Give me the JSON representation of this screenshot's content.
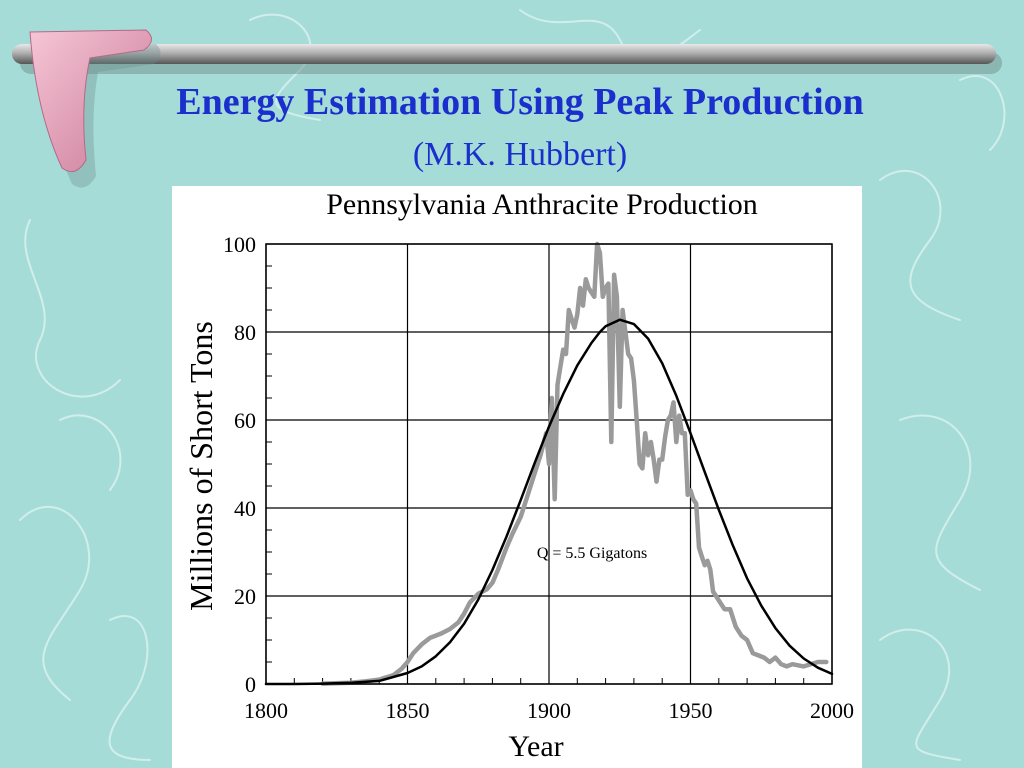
{
  "slide": {
    "title": "Energy Estimation Using Peak Production",
    "subtitle": "(M.K. Hubbert)"
  },
  "colors": {
    "background": "#a6dcd8",
    "title_text": "#1a2fcc",
    "swirl_lines": "#d6f0ec",
    "rod": "#8a8a8a",
    "boomerang": "#e79ab4",
    "actual_series": "#9a9a9a",
    "fit_series": "#000000"
  },
  "chart_data": {
    "type": "line",
    "title": "Pennsylvania Anthracite Production",
    "xlabel": "Year",
    "ylabel": "Millions of Short Tons",
    "xlim": [
      1800,
      2000
    ],
    "ylim": [
      0,
      100
    ],
    "xticks": [
      1800,
      1850,
      1900,
      1950,
      2000
    ],
    "yticks": [
      0,
      20,
      40,
      60,
      80,
      100
    ],
    "grid": true,
    "annotation": "Q = 5.5 Gigatons",
    "series": [
      {
        "style": "gray-thick",
        "x": [
          1820,
          1830,
          1835,
          1840,
          1845,
          1848,
          1850,
          1852,
          1855,
          1858,
          1860,
          1862,
          1865,
          1868,
          1870,
          1872,
          1875,
          1878,
          1880,
          1882,
          1885,
          1887,
          1890,
          1892,
          1895,
          1897,
          1899,
          1900,
          1901,
          1902,
          1903,
          1904,
          1905,
          1906,
          1907,
          1908,
          1909,
          1910,
          1911,
          1912,
          1913,
          1914,
          1915,
          1916,
          1917,
          1918,
          1919,
          1920,
          1921,
          1922,
          1923,
          1924,
          1925,
          1926,
          1927,
          1928,
          1929,
          1930,
          1931,
          1932,
          1933,
          1934,
          1935,
          1936,
          1937,
          1938,
          1939,
          1940,
          1941,
          1942,
          1943,
          1944,
          1945,
          1946,
          1947,
          1948,
          1949,
          1950,
          1951,
          1952,
          1953,
          1954,
          1955,
          1956,
          1957,
          1958,
          1959,
          1960,
          1962,
          1964,
          1966,
          1968,
          1970,
          1972,
          1974,
          1976,
          1978,
          1980,
          1982,
          1984,
          1986,
          1990,
          1995,
          1998
        ],
        "y": [
          0.1,
          0.3,
          0.6,
          1.0,
          2.0,
          3.5,
          5.0,
          7.0,
          9.0,
          10.5,
          11.0,
          11.5,
          12.5,
          14.0,
          16.0,
          18.5,
          20.5,
          21.5,
          23.0,
          26.0,
          31.0,
          34.0,
          38.0,
          42.0,
          48.0,
          52.0,
          57.0,
          50.0,
          65.0,
          42.0,
          68.0,
          72.0,
          76.0,
          75.0,
          85.0,
          83.0,
          81.0,
          84.0,
          90.0,
          86.0,
          92.0,
          90.0,
          89.0,
          88.0,
          100.0,
          98.0,
          88.0,
          90.0,
          91.0,
          55.0,
          93.0,
          88.0,
          63.0,
          85.0,
          80.0,
          75.0,
          74.0,
          69.0,
          60.0,
          50.0,
          49.0,
          57.0,
          52.0,
          55.0,
          51.0,
          46.0,
          51.0,
          51.0,
          56.0,
          60.0,
          61.0,
          64.0,
          55.0,
          61.0,
          57.0,
          57.0,
          43.0,
          44.0,
          42.0,
          41.0,
          31.0,
          29.0,
          27.0,
          28.0,
          26.0,
          21.0,
          20.0,
          19.0,
          17.0,
          17.0,
          13.0,
          11.0,
          10.0,
          7.0,
          6.5,
          6.0,
          5.0,
          6.0,
          4.5,
          4.0,
          4.5,
          4.0,
          5.0,
          5.0
        ]
      },
      {
        "style": "black-thin",
        "x": [
          1800,
          1810,
          1820,
          1830,
          1840,
          1850,
          1855,
          1860,
          1865,
          1870,
          1875,
          1880,
          1885,
          1890,
          1895,
          1900,
          1905,
          1910,
          1915,
          1918,
          1920,
          1925,
          1930,
          1935,
          1940,
          1945,
          1950,
          1955,
          1960,
          1965,
          1970,
          1975,
          1980,
          1985,
          1990,
          1995,
          2000
        ],
        "y": [
          0.0,
          0.0,
          0.1,
          0.3,
          0.7,
          2.5,
          4.0,
          6.3,
          9.5,
          13.7,
          19.2,
          25.9,
          33.5,
          41.8,
          50.3,
          58.5,
          65.9,
          72.4,
          77.5,
          80.0,
          81.3,
          82.8,
          81.8,
          78.5,
          72.9,
          65.5,
          57.0,
          48.2,
          39.6,
          31.4,
          24.0,
          17.8,
          12.7,
          8.7,
          5.8,
          3.7,
          2.3
        ]
      }
    ]
  }
}
